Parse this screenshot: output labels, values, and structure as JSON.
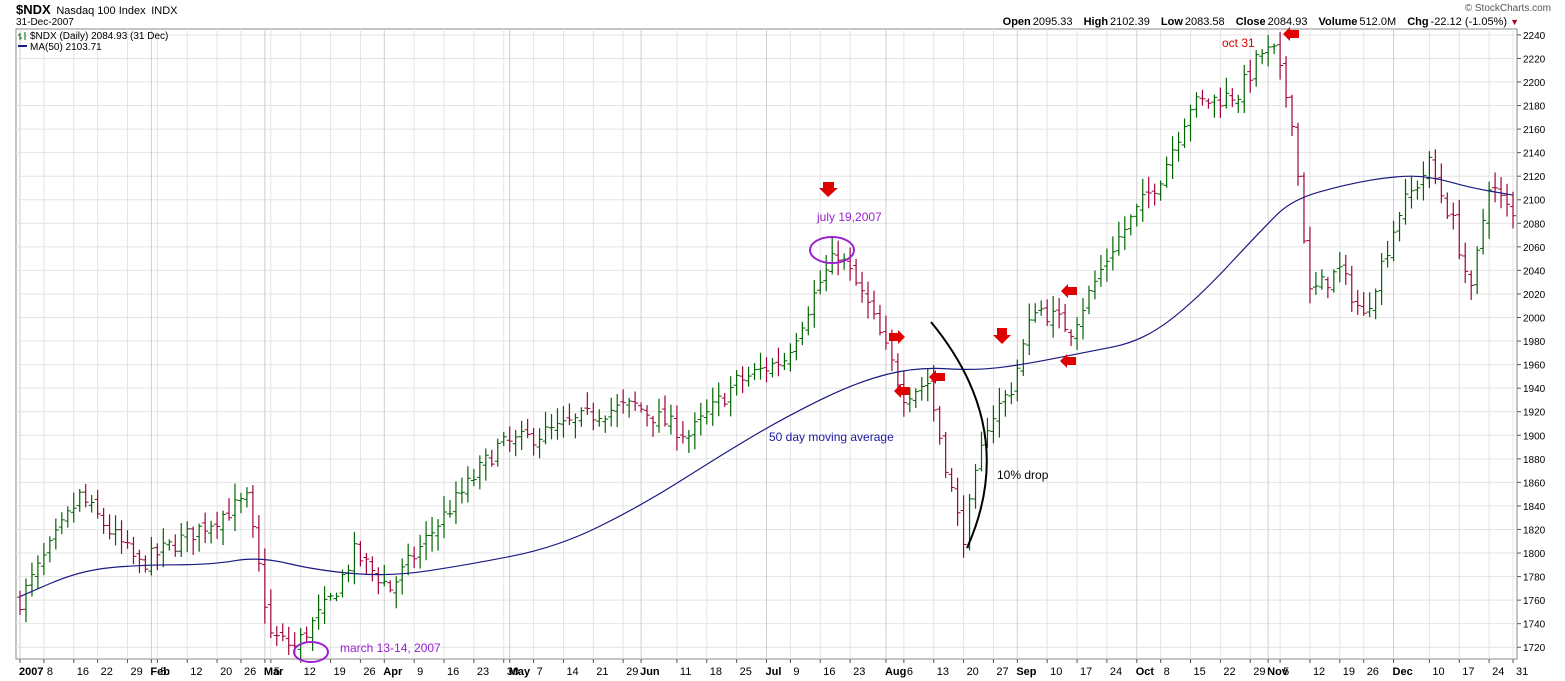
{
  "header": {
    "symbol": "$NDX",
    "name": "Nasdaq 100 Index",
    "exchange": "INDX",
    "date": "31-Dec-2007",
    "brand": "© StockCharts.com",
    "open_label": "Open",
    "open": "2095.33",
    "high_label": "High",
    "high": "2102.39",
    "low_label": "Low",
    "low": "2083.58",
    "close_label": "Close",
    "close": "2084.93",
    "volume_label": "Volume",
    "volume": "512.0M",
    "chg_label": "Chg",
    "chg": "-22.12 (-1.05%)",
    "chg_icon": "down-triangle-icon"
  },
  "legend": {
    "price": "$NDX (Daily) 2084.93 (31 Dec)",
    "ma": "MA(50) 2103.71"
  },
  "colors": {
    "up_bar": "#006400",
    "down_bar": "#a0003a",
    "ma_line": "#1a1a80",
    "grid": "#e4e4e4",
    "annotation_purple": "#9a1fd0",
    "annotation_red": "#e00000",
    "annotation_blue": "#1a1aa0"
  },
  "annotations": {
    "march": "march 13-14, 2007",
    "july": "july 19,2007",
    "oct": "oct 31",
    "ma": "50 day moving average",
    "drop": "10% drop"
  },
  "chart_data": {
    "type": "ohlc",
    "title": "$NDX Nasdaq 100 Index INDX",
    "ylim": [
      1710,
      2245
    ],
    "y_ticks": [
      1720,
      1740,
      1760,
      1780,
      1800,
      1820,
      1840,
      1860,
      1880,
      1900,
      1920,
      1940,
      1960,
      1980,
      2000,
      2020,
      2040,
      2060,
      2080,
      2100,
      2120,
      2140,
      2160,
      2180,
      2200,
      2220,
      2240
    ],
    "x_ticks": [
      {
        "label": "2007",
        "day": 0,
        "month": true
      },
      {
        "label": "8",
        "day": 4
      },
      {
        "label": "16",
        "day": 9
      },
      {
        "label": "22",
        "day": 13
      },
      {
        "label": "29",
        "day": 18
      },
      {
        "label": "Feb",
        "day": 22,
        "month": true
      },
      {
        "label": "5",
        "day": 23
      },
      {
        "label": "12",
        "day": 28
      },
      {
        "label": "20",
        "day": 33
      },
      {
        "label": "26",
        "day": 37
      },
      {
        "label": "Mar",
        "day": 41,
        "month": true
      },
      {
        "label": "5",
        "day": 42
      },
      {
        "label": "12",
        "day": 47
      },
      {
        "label": "19",
        "day": 52
      },
      {
        "label": "26",
        "day": 57
      },
      {
        "label": "Apr",
        "day": 61,
        "month": true
      },
      {
        "label": "9",
        "day": 66
      },
      {
        "label": "16",
        "day": 71
      },
      {
        "label": "23",
        "day": 76
      },
      {
        "label": "30",
        "day": 81
      },
      {
        "label": "May",
        "day": 82,
        "month": true
      },
      {
        "label": "7",
        "day": 86
      },
      {
        "label": "14",
        "day": 91
      },
      {
        "label": "21",
        "day": 96
      },
      {
        "label": "29",
        "day": 101
      },
      {
        "label": "Jun",
        "day": 104,
        "month": true
      },
      {
        "label": "11",
        "day": 110
      },
      {
        "label": "18",
        "day": 115
      },
      {
        "label": "25",
        "day": 120
      },
      {
        "label": "Jul",
        "day": 125,
        "month": true
      },
      {
        "label": "9",
        "day": 129
      },
      {
        "label": "16",
        "day": 134
      },
      {
        "label": "23",
        "day": 139
      },
      {
        "label": "Aug",
        "day": 145,
        "month": true
      },
      {
        "label": "6",
        "day": 148
      },
      {
        "label": "13",
        "day": 153
      },
      {
        "label": "20",
        "day": 158
      },
      {
        "label": "27",
        "day": 163
      },
      {
        "label": "Sep",
        "day": 167,
        "month": true
      },
      {
        "label": "10",
        "day": 172
      },
      {
        "label": "17",
        "day": 177
      },
      {
        "label": "24",
        "day": 182
      },
      {
        "label": "Oct",
        "day": 187,
        "month": true
      },
      {
        "label": "8",
        "day": 191
      },
      {
        "label": "15",
        "day": 196
      },
      {
        "label": "22",
        "day": 201
      },
      {
        "label": "29",
        "day": 206
      },
      {
        "label": "Nov",
        "day": 209,
        "month": true
      },
      {
        "label": "5",
        "day": 211
      },
      {
        "label": "12",
        "day": 216
      },
      {
        "label": "19",
        "day": 221
      },
      {
        "label": "26",
        "day": 225
      },
      {
        "label": "Dec",
        "day": 230,
        "month": true
      },
      {
        "label": "10",
        "day": 236
      },
      {
        "label": "17",
        "day": 241
      },
      {
        "label": "24",
        "day": 246
      },
      {
        "label": "31",
        "day": 250
      }
    ],
    "key_points": [
      {
        "day": 0,
        "close": 1760
      },
      {
        "day": 10,
        "close": 1848
      },
      {
        "day": 20,
        "close": 1790
      },
      {
        "day": 38,
        "close": 1845
      },
      {
        "day": 42,
        "close": 1730
      },
      {
        "day": 46,
        "close": 1720
      },
      {
        "day": 52,
        "close": 1760
      },
      {
        "day": 56,
        "close": 1800
      },
      {
        "day": 62,
        "close": 1770
      },
      {
        "day": 70,
        "close": 1825
      },
      {
        "day": 80,
        "close": 1890
      },
      {
        "day": 90,
        "close": 1905
      },
      {
        "day": 97,
        "close": 1920
      },
      {
        "day": 103,
        "close": 1925
      },
      {
        "day": 112,
        "close": 1900
      },
      {
        "day": 120,
        "close": 1945
      },
      {
        "day": 128,
        "close": 1965
      },
      {
        "day": 134,
        "close": 2030
      },
      {
        "day": 137,
        "close": 2055
      },
      {
        "day": 142,
        "close": 2010
      },
      {
        "day": 148,
        "close": 1935
      },
      {
        "day": 152,
        "close": 1945
      },
      {
        "day": 157,
        "close": 1830
      },
      {
        "day": 158,
        "close": 1815
      },
      {
        "day": 162,
        "close": 1910
      },
      {
        "day": 166,
        "close": 1940
      },
      {
        "day": 170,
        "close": 2010
      },
      {
        "day": 176,
        "close": 1990
      },
      {
        "day": 183,
        "close": 2060
      },
      {
        "day": 191,
        "close": 2120
      },
      {
        "day": 196,
        "close": 2180
      },
      {
        "day": 204,
        "close": 2190
      },
      {
        "day": 208,
        "close": 2225
      },
      {
        "day": 210,
        "close": 2225
      },
      {
        "day": 213,
        "close": 2170
      },
      {
        "day": 216,
        "close": 2020
      },
      {
        "day": 221,
        "close": 2040
      },
      {
        "day": 225,
        "close": 2000
      },
      {
        "day": 231,
        "close": 2090
      },
      {
        "day": 236,
        "close": 2130
      },
      {
        "day": 240,
        "close": 2080
      },
      {
        "day": 243,
        "close": 2020
      },
      {
        "day": 246,
        "close": 2115
      },
      {
        "day": 250,
        "close": 2085
      }
    ],
    "ma_points": [
      {
        "day": 0,
        "value": 1763
      },
      {
        "day": 10,
        "value": 1785
      },
      {
        "day": 20,
        "value": 1790
      },
      {
        "day": 32,
        "value": 1790
      },
      {
        "day": 40,
        "value": 1797
      },
      {
        "day": 50,
        "value": 1785
      },
      {
        "day": 62,
        "value": 1780
      },
      {
        "day": 75,
        "value": 1790
      },
      {
        "day": 90,
        "value": 1805
      },
      {
        "day": 104,
        "value": 1840
      },
      {
        "day": 118,
        "value": 1885
      },
      {
        "day": 128,
        "value": 1915
      },
      {
        "day": 140,
        "value": 1945
      },
      {
        "day": 150,
        "value": 1958
      },
      {
        "day": 160,
        "value": 1955
      },
      {
        "day": 168,
        "value": 1960
      },
      {
        "day": 178,
        "value": 1970
      },
      {
        "day": 188,
        "value": 1980
      },
      {
        "day": 197,
        "value": 2015
      },
      {
        "day": 208,
        "value": 2075
      },
      {
        "day": 213,
        "value": 2100
      },
      {
        "day": 222,
        "value": 2113
      },
      {
        "day": 230,
        "value": 2120
      },
      {
        "day": 236,
        "value": 2120
      },
      {
        "day": 243,
        "value": 2110
      },
      {
        "day": 250,
        "value": 2104
      }
    ]
  }
}
